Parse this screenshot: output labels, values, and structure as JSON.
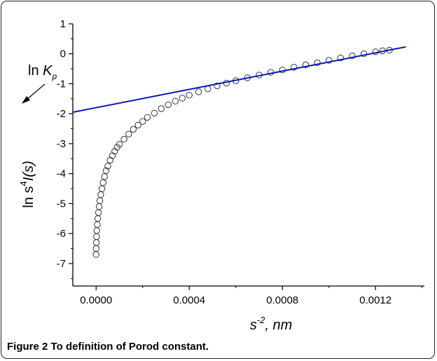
{
  "caption": {
    "label": "Figure 2",
    "text": "To definition of Porod constant."
  },
  "annotation": {
    "prefix": "ln ",
    "symbol": "K",
    "subscript": "p"
  },
  "colors": {
    "fit_line": "#0c18b8",
    "points": "#333333",
    "axes": "#000000"
  },
  "chart_data": {
    "type": "scatter",
    "x_axis": {
      "label_base": "s",
      "label_exp": "-2",
      "label_unit": ", nm",
      "range": [
        -0.0001,
        0.00141
      ],
      "ticks": [
        0.0,
        0.0004,
        0.0008,
        0.0012
      ],
      "tick_labels": [
        "0.0000",
        "0.0004",
        "0.0008",
        "0.0012"
      ]
    },
    "y_axis": {
      "label_pre": "ln s",
      "label_exp": "4",
      "label_post": "I(s)",
      "range": [
        -7.75,
        1.0
      ],
      "ticks": [
        1,
        0,
        -1,
        -2,
        -3,
        -4,
        -5,
        -6,
        -7
      ],
      "tick_labels": [
        "1",
        "0",
        "-1",
        "-2",
        "-3",
        "-4",
        "-5",
        "-6",
        "-7"
      ]
    },
    "grid": false,
    "series": [
      {
        "type": "scatter",
        "marker": "open-circle",
        "points": [
          [
            0.0,
            -6.7
          ],
          [
            0.0,
            -6.5
          ],
          [
            1e-06,
            -6.3
          ],
          [
            2e-06,
            -6.1
          ],
          [
            3e-06,
            -5.9
          ],
          [
            5e-06,
            -5.7
          ],
          [
            7e-06,
            -5.5
          ],
          [
            1e-05,
            -5.3
          ],
          [
            1.3e-05,
            -5.1
          ],
          [
            1.6e-05,
            -4.9
          ],
          [
            2e-05,
            -4.7
          ],
          [
            2.5e-05,
            -4.5
          ],
          [
            3e-05,
            -4.3
          ],
          [
            3.6e-05,
            -4.1
          ],
          [
            4.3e-05,
            -3.9
          ],
          [
            5e-05,
            -3.75
          ],
          [
            6e-05,
            -3.55
          ],
          [
            7e-05,
            -3.4
          ],
          [
            8e-05,
            -3.25
          ],
          [
            9e-05,
            -3.12
          ],
          [
            0.0001,
            -3.02
          ],
          [
            0.00012,
            -2.85
          ],
          [
            0.00014,
            -2.68
          ],
          [
            0.00016,
            -2.52
          ],
          [
            0.00018,
            -2.38
          ],
          [
            0.0002,
            -2.26
          ],
          [
            0.00022,
            -2.12
          ],
          [
            0.00025,
            -1.98
          ],
          [
            0.00028,
            -1.83
          ],
          [
            0.00031,
            -1.7
          ],
          [
            0.00034,
            -1.58
          ],
          [
            0.00037,
            -1.48
          ],
          [
            0.0004,
            -1.38
          ],
          [
            0.00044,
            -1.27
          ],
          [
            0.00048,
            -1.17
          ],
          [
            0.00052,
            -1.07
          ],
          [
            0.00056,
            -0.98
          ],
          [
            0.0006,
            -0.9
          ],
          [
            0.00065,
            -0.8
          ],
          [
            0.0007,
            -0.71
          ],
          [
            0.00075,
            -0.62
          ],
          [
            0.0008,
            -0.54
          ],
          [
            0.00085,
            -0.45
          ],
          [
            0.0009,
            -0.37
          ],
          [
            0.00095,
            -0.3
          ],
          [
            0.001,
            -0.22
          ],
          [
            0.00105,
            -0.14
          ],
          [
            0.0011,
            -0.07
          ],
          [
            0.00115,
            0.0
          ],
          [
            0.0012,
            0.07
          ],
          [
            0.00123,
            0.1
          ],
          [
            0.00126,
            0.12
          ]
        ]
      },
      {
        "type": "line",
        "x": [
          -0.0001,
          0.00133
        ],
        "y": [
          -1.95,
          0.23
        ]
      }
    ]
  }
}
